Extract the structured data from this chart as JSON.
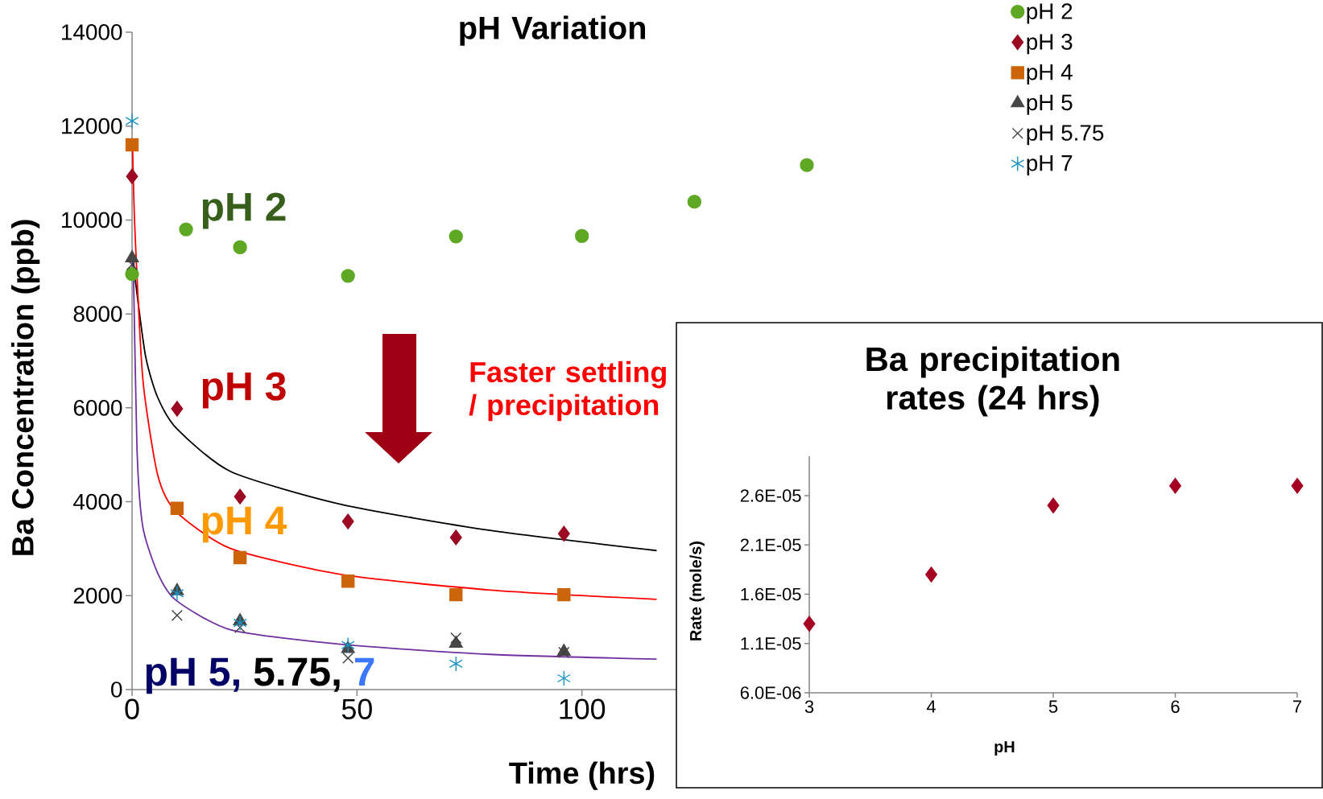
{
  "chart_data": [
    {
      "type": "scatter",
      "title": "pH Variation",
      "xlabel": "Time (hrs)",
      "ylabel": "Ba Concentration (ppb)",
      "xlim": [
        0,
        150
      ],
      "ylim": [
        0,
        14000
      ],
      "xticks": [
        0,
        50,
        100
      ],
      "yticks": [
        0,
        2000,
        4000,
        6000,
        8000,
        10000,
        12000,
        14000
      ],
      "legend": "top right",
      "annotations": [
        "pH 2",
        "pH 3",
        "pH 4",
        "pH 5,",
        "5.75,",
        "7",
        "Faster settling / precipitation"
      ],
      "series": [
        {
          "name": "pH 2",
          "color": "#5ea823",
          "marker": "circle",
          "x": [
            0,
            12,
            24,
            48,
            72,
            100,
            125,
            150
          ],
          "values": [
            8850,
            9800,
            9420,
            8810,
            9650,
            9660,
            10390,
            11170
          ]
        },
        {
          "name": "pH 3",
          "color": "#9b0a22",
          "marker": "diamond",
          "x": [
            0,
            10,
            24,
            48,
            72,
            96
          ],
          "values": [
            10930,
            5980,
            4110,
            3580,
            3240,
            3320
          ]
        },
        {
          "name": "pH 4",
          "color": "#cc650a",
          "marker": "square",
          "x": [
            0,
            10,
            24,
            48,
            72,
            96
          ],
          "values": [
            11600,
            3860,
            2810,
            2310,
            2020,
            2020
          ]
        },
        {
          "name": "pH 5",
          "color": "#474747",
          "marker": "triangle",
          "x": [
            0,
            10,
            24,
            48,
            72,
            96
          ],
          "values": [
            9190,
            2100,
            1460,
            870,
            980,
            810
          ]
        },
        {
          "name": "pH 5.75",
          "color": "#404040",
          "marker": "cross",
          "x": [
            0,
            10,
            24,
            48,
            72,
            96
          ],
          "values": [
            9050,
            1580,
            1320,
            670,
            1100,
            790
          ]
        },
        {
          "name": "pH 7",
          "color": "#1a93c2",
          "x": [
            0,
            10,
            24,
            48,
            72,
            96
          ],
          "values": [
            12110,
            2050,
            1420,
            950,
            550,
            240
          ]
        },
        {
          "type": "line",
          "color": "#000000",
          "x": [
            0.3,
            0.7,
            3,
            5.7,
            10,
            22,
            46.7,
            79.6,
            116.6
          ],
          "values": [
            9200,
            8740,
            7100,
            6220,
            5550,
            4640,
            3940,
            3390,
            2960
          ]
        },
        {
          "type": "line",
          "color": "#ff0000",
          "x": [
            0.1,
            0.65,
            2.4,
            5.7,
            9.8,
            22,
            46.7,
            79.6,
            116.6
          ],
          "values": [
            11600,
            9760,
            6610,
            4570,
            3790,
            3000,
            2450,
            2120,
            1920
          ]
        },
        {
          "type": "line",
          "color": "#7030a0",
          "x": [
            0.05,
            0.3,
            1.1,
            2.4,
            5.7,
            9.8,
            22,
            46.7,
            79.6,
            116.6
          ],
          "values": [
            9000,
            8960,
            5110,
            3460,
            2480,
            1900,
            1270,
            960,
            750,
            650
          ]
        }
      ]
    },
    {
      "type": "scatter",
      "title": "Ba precipitation rates (24 hrs)",
      "xlabel": "pH",
      "ylabel": "Rate (mole/s)",
      "xlim": [
        3,
        7
      ],
      "ylim": [
        6e-06,
        3e-05
      ],
      "xticks": [
        3,
        4,
        5,
        6,
        7
      ],
      "yticks": [
        {
          "value": 6e-06,
          "label": "6.0E-06"
        },
        {
          "value": 1.1e-05,
          "label": "1.1E-05"
        },
        {
          "value": 1.6e-05,
          "label": "1.6E-05"
        },
        {
          "value": 2.1e-05,
          "label": "2.1E-05"
        },
        {
          "value": 2.6e-05,
          "label": "2.6E-05"
        }
      ],
      "series": [
        {
          "color": "#a50021",
          "marker": "diamond",
          "x": [
            3,
            4,
            5,
            6,
            7
          ],
          "values": [
            1.3e-05,
            1.8e-05,
            2.5e-05,
            2.7e-05,
            2.7e-05
          ]
        }
      ]
    }
  ]
}
